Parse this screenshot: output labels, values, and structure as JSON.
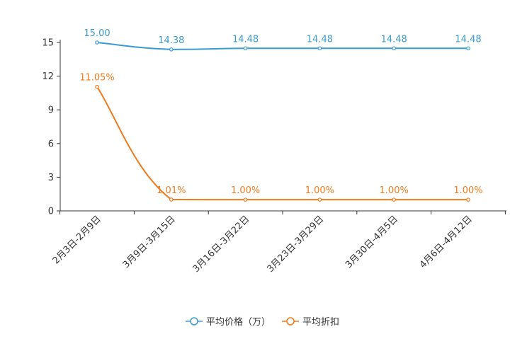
{
  "chart_data": {
    "type": "line",
    "title": "",
    "xlabel": "",
    "ylabel": "",
    "ylim": [
      0,
      15
    ],
    "yticks": [
      "0",
      "3",
      "6",
      "9",
      "12",
      "15"
    ],
    "grid": false,
    "legend_position": "bottom",
    "categories": [
      "2月3日-2月9日",
      "3月9日-3月15日",
      "3月16日-3月22日",
      "3月23日-3月29日",
      "3月30日-4月5日",
      "4月6日-4月12日"
    ],
    "series": [
      {
        "name": "平均价格（万）",
        "color": "#3b9bd0",
        "values": [
          15.0,
          14.38,
          14.48,
          14.48,
          14.48,
          14.48
        ],
        "labels": [
          "15.00",
          "14.38",
          "14.48",
          "14.48",
          "14.48",
          "14.48"
        ]
      },
      {
        "name": "平均折扣",
        "color": "#f07a1a",
        "values": [
          11.05,
          1.01,
          1.0,
          1.0,
          1.0,
          1.0
        ],
        "labels": [
          "11.05%",
          "1.01%",
          "1.00%",
          "1.00%",
          "1.00%",
          "1.00%"
        ]
      }
    ]
  }
}
